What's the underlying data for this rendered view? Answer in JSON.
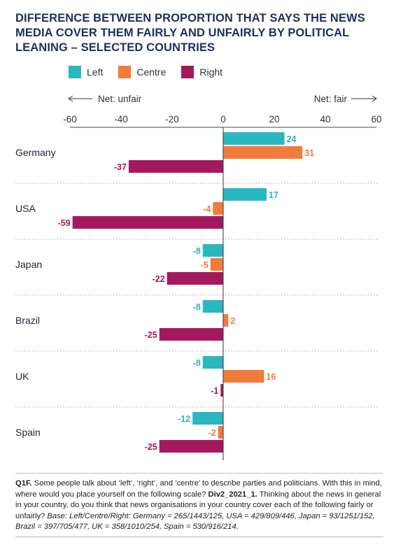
{
  "title": "DIFFERENCE BETWEEN PROPORTION THAT SAYS THE NEWS\nMEDIA COVER THEM FAIRLY AND UNFAIRLY BY POLITICAL\nLEANING – SELECTED COUNTRIES",
  "colors": {
    "Left": "#2bb7c0",
    "Centre": "#f07b3b",
    "Right": "#a4195e",
    "title": "#1f2f5c"
  },
  "footnote": {
    "q_label": "Q1F.",
    "q_text1": " Some people talk about ‘left’, ‘right’, and ‘centre’ to describe parties and politicians. With this in mind, where would you place yourself on the following scale? ",
    "code1": "Div2_2021_1.",
    "q_text2": " Thinking about the news in general in your country, do you think that news organisations in your country cover each of the following fairly or unfairly? ",
    "base": "Base: Left/Centre/Right: Germany = 265/1443/125, USA = 429/809/446, Japan = 93/1251/152, Brazil = 397/705/477, UK = 358/1010/254, Spain = 530/916/214."
  },
  "chart_data": {
    "type": "bar",
    "orientation": "horizontal",
    "categories": [
      "Germany",
      "USA",
      "Japan",
      "Brazil",
      "UK",
      "Spain"
    ],
    "series": [
      {
        "name": "Left",
        "values": [
          24,
          17,
          -8,
          -8,
          -8,
          -12
        ]
      },
      {
        "name": "Centre",
        "values": [
          31,
          -4,
          -5,
          2,
          16,
          -2
        ]
      },
      {
        "name": "Right",
        "values": [
          -37,
          -59,
          -22,
          -25,
          -1,
          -25
        ]
      }
    ],
    "xlim": [
      -60,
      60
    ],
    "ticks": [
      -60,
      -40,
      -20,
      0,
      20,
      40,
      60
    ],
    "direction_labels": {
      "left": "Net: unfair",
      "right": "Net: fair"
    },
    "legend_position": "top-left",
    "grid": false
  }
}
